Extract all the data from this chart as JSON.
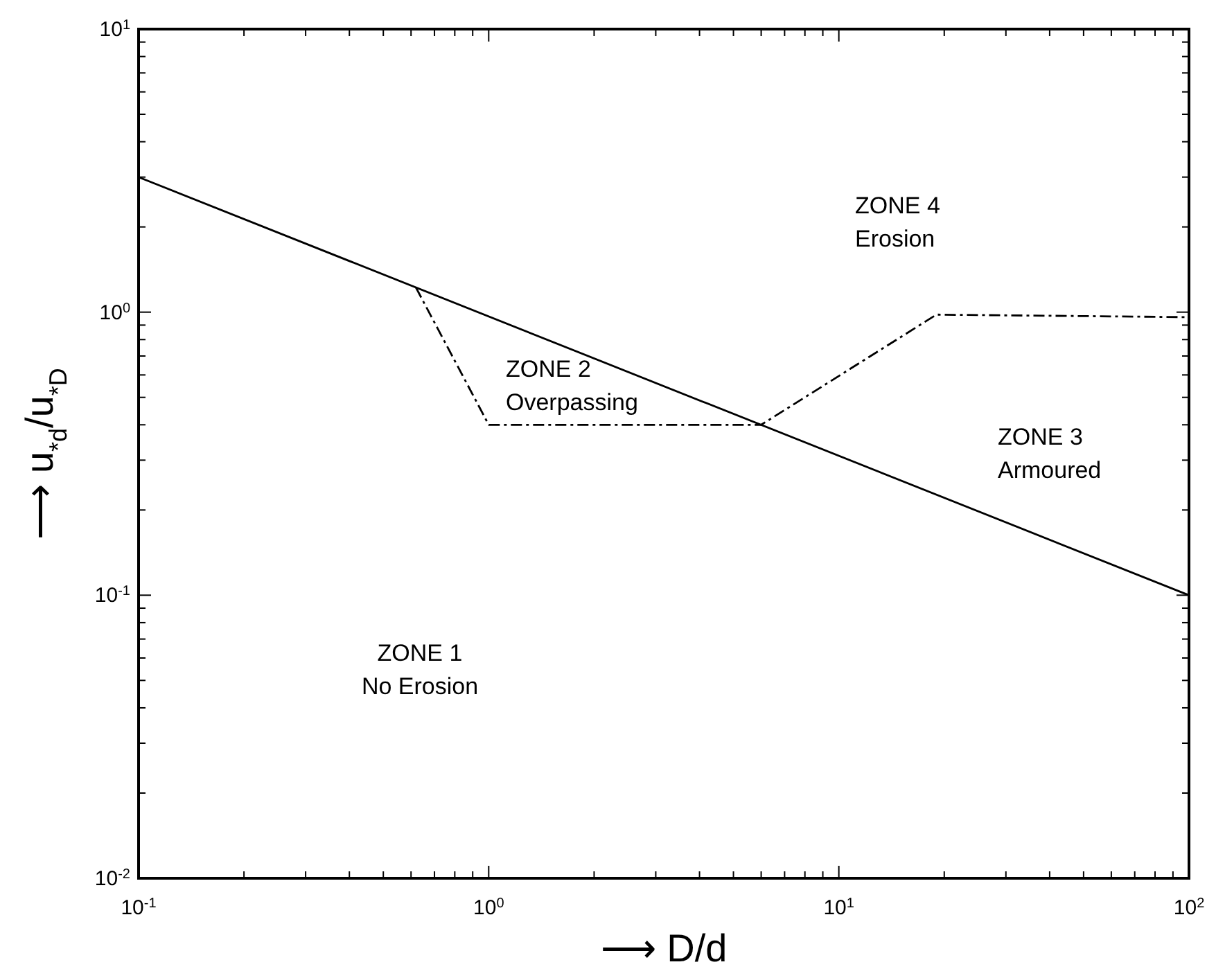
{
  "chart_data": {
    "type": "line",
    "xlabel": "⟶  D/d",
    "ylabel": "⟶  u$_{*d}$/u$_{*D}$",
    "log": "xy",
    "xlim": [
      0.1,
      100
    ],
    "ylim": [
      0.01,
      10
    ],
    "xticks": [
      {
        "value": 0.1,
        "label": "10$^{-1}$"
      },
      {
        "value": 0.2,
        "label": null
      },
      {
        "value": 0.3,
        "label": null
      },
      {
        "value": 0.4,
        "label": null
      },
      {
        "value": 0.5,
        "label": null
      },
      {
        "value": 0.6,
        "label": null
      },
      {
        "value": 0.7,
        "label": null
      },
      {
        "value": 0.8,
        "label": null
      },
      {
        "value": 0.9,
        "label": null
      },
      {
        "value": 1,
        "label": "10$^{0}$"
      },
      {
        "value": 2,
        "label": null
      },
      {
        "value": 3,
        "label": null
      },
      {
        "value": 4,
        "label": null
      },
      {
        "value": 5,
        "label": null
      },
      {
        "value": 6,
        "label": null
      },
      {
        "value": 7,
        "label": null
      },
      {
        "value": 8,
        "label": null
      },
      {
        "value": 9,
        "label": null
      },
      {
        "value": 10,
        "label": "10$^{1}$"
      },
      {
        "value": 20,
        "label": null
      },
      {
        "value": 30,
        "label": null
      },
      {
        "value": 40,
        "label": null
      },
      {
        "value": 50,
        "label": null
      },
      {
        "value": 60,
        "label": null
      },
      {
        "value": 70,
        "label": null
      },
      {
        "value": 80,
        "label": null
      },
      {
        "value": 90,
        "label": null
      },
      {
        "value": 100,
        "label": "10$^{2}$"
      }
    ],
    "yticks": [
      {
        "value": 0.01,
        "label": "10$^{-2}$"
      },
      {
        "value": 0.02,
        "label": null
      },
      {
        "value": 0.03,
        "label": null
      },
      {
        "value": 0.04,
        "label": null
      },
      {
        "value": 0.05,
        "label": null
      },
      {
        "value": 0.06,
        "label": null
      },
      {
        "value": 0.07,
        "label": null
      },
      {
        "value": 0.08,
        "label": null
      },
      {
        "value": 0.09,
        "label": null
      },
      {
        "value": 0.1,
        "label": "10$^{-1}$"
      },
      {
        "value": 0.2,
        "label": null
      },
      {
        "value": 0.3,
        "label": null
      },
      {
        "value": 0.4,
        "label": null
      },
      {
        "value": 0.5,
        "label": null
      },
      {
        "value": 0.6,
        "label": null
      },
      {
        "value": 0.7,
        "label": null
      },
      {
        "value": 0.8,
        "label": null
      },
      {
        "value": 0.9,
        "label": null
      },
      {
        "value": 1,
        "label": "10$^{0}$"
      },
      {
        "value": 2,
        "label": null
      },
      {
        "value": 3,
        "label": null
      },
      {
        "value": 4,
        "label": null
      },
      {
        "value": 5,
        "label": null
      },
      {
        "value": 6,
        "label": null
      },
      {
        "value": 7,
        "label": null
      },
      {
        "value": 8,
        "label": null
      },
      {
        "value": 9,
        "label": null
      },
      {
        "value": 10,
        "label": "10$^{1}$"
      }
    ],
    "series": [
      {
        "color": "#000000",
        "line_style": "solid",
        "x": [
          0.1,
          100
        ],
        "values": [
          3,
          0.1
        ]
      },
      {
        "color": "#000000",
        "line_style": "dashdot",
        "x": [
          0.62,
          1,
          6,
          19,
          100
        ],
        "values": [
          1.22,
          0.4,
          0.4,
          0.98,
          0.96
        ]
      }
    ],
    "annotations": [
      "ZONE 4\nErosion",
      "ZONE 2\nOverpassing",
      "ZONE 3\nArmoured",
      "ZONE 1\nNo Erosion"
    ]
  }
}
